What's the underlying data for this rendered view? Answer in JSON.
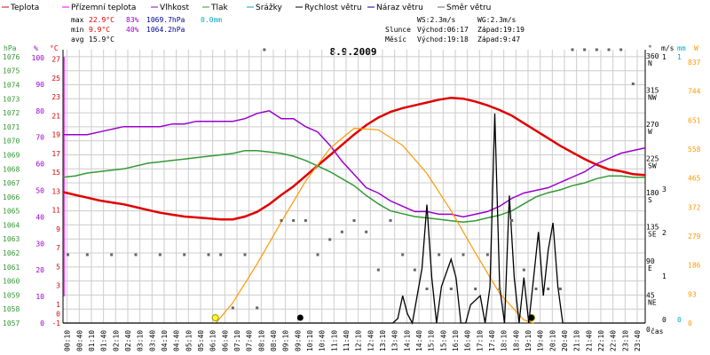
{
  "legend": [
    {
      "label": "Teplota",
      "color": "#e00000"
    },
    {
      "label": "Přízemní teplota",
      "color": "#ff00ff"
    },
    {
      "label": "Vlhkost",
      "color": "#9900cc"
    },
    {
      "label": "Tlak",
      "color": "#339933"
    },
    {
      "label": "Srážky",
      "color": "#00aacc"
    },
    {
      "label": "Rychlost větru",
      "color": "#000000"
    },
    {
      "label": "Náraz větru",
      "color": "#000099"
    },
    {
      "label": "Směr větru",
      "color": "#666666"
    }
  ],
  "stats": {
    "max_label": "max",
    "max_temp": "22.9°C",
    "max_hum": "83%",
    "max_press": "1069.7hPa",
    "max_rain": "0.0mm",
    "min_label": "min",
    "min_temp": "9.9°C",
    "min_hum": "40%",
    "min_press": "1064.2hPa",
    "avg_label": "avg",
    "avg_temp": "15.9°C"
  },
  "wind_info": {
    "ws": "WS:2.3m/s",
    "wg": "WG:2.3m/s"
  },
  "sun_info": {
    "label": "Slunce",
    "rise": "Východ:06:17",
    "set": "Západ:19:19"
  },
  "moon_info": {
    "label": "Měsíc",
    "rise": "Východ:19:18",
    "set": "Západ:9:47"
  },
  "date": "8.9.2009",
  "colors": {
    "temp": "#e00000",
    "ground_temp": "#ff00ff",
    "humidity": "#9900cc",
    "pressure": "#339933",
    "rain": "#00aacc",
    "wind_speed": "#000000",
    "gust": "#000099",
    "wind_dir": "#666666",
    "solar": "#ff9900",
    "hpa_axis": "#339933",
    "pct_axis": "#9900cc",
    "temp_axis": "#e00000",
    "rain_axis": "#00aacc",
    "solar_axis": "#ff9900",
    "grid": "#cccccc"
  },
  "axes": {
    "hpa_label": "hPa",
    "pct_label": "%",
    "temp_label": "°C",
    "dir_label": "°",
    "ms_label": "m/s",
    "mm_label": "mm",
    "w_label": "W",
    "hpa_ticks": [
      "1076",
      "1075",
      "1074",
      "1073",
      "1072",
      "1071",
      "1070",
      "1069",
      "1068",
      "1067",
      "1066",
      "1065",
      "1064",
      "1063",
      "1062",
      "1061",
      "1060",
      "1059",
      "1058",
      "1057"
    ],
    "pct_ticks": [
      "100",
      "90",
      "80",
      "70",
      "60",
      "50",
      "40",
      "30",
      "20",
      "10",
      "0"
    ],
    "temp_ticks": [
      "27",
      "25",
      "23",
      "21",
      "19",
      "17",
      "15",
      "13",
      "11",
      "9",
      "7",
      "5",
      "3",
      "1",
      "0",
      "-1"
    ],
    "dir_ticks": [
      "360 N",
      "315 NW",
      "270 W",
      "225 SW",
      "180 S",
      "135 SE",
      "90 E",
      "45 NE",
      "0"
    ],
    "ms_ticks": [
      "1",
      "3",
      "2",
      "1",
      "0"
    ],
    "mm_ticks": [
      "0",
      "1"
    ],
    "solar_ticks": [
      "837",
      "744",
      "651",
      "558",
      "465",
      "372",
      "279",
      "186",
      "93",
      "0"
    ],
    "x_label": "čas",
    "x_ticks": [
      "00:10",
      "00:40",
      "01:10",
      "01:40",
      "02:10",
      "02:40",
      "03:10",
      "03:40",
      "04:10",
      "04:40",
      "05:10",
      "05:40",
      "06:10",
      "06:40",
      "07:10",
      "07:40",
      "08:10",
      "08:40",
      "09:10",
      "09:40",
      "10:10",
      "10:40",
      "11:10",
      "11:40",
      "12:10",
      "12:40",
      "13:10",
      "13:40",
      "14:10",
      "14:40",
      "15:10",
      "15:40",
      "16:10",
      "16:40",
      "17:10",
      "17:40",
      "18:10",
      "18:40",
      "19:10",
      "19:40",
      "20:10",
      "20:40",
      "21:10",
      "21:40",
      "22:10",
      "22:40",
      "23:10",
      "23:40"
    ]
  },
  "chart_data": {
    "type": "line",
    "title": "8.9.2009",
    "x_unit": "hours",
    "xlim": [
      0,
      24
    ],
    "temp_ylim": [
      -1,
      28
    ],
    "hum_ylim": [
      0,
      100
    ],
    "press_ylim": [
      1057,
      1076.5
    ],
    "solar_ylim": [
      0,
      837
    ],
    "dir_ylim": [
      0,
      360
    ],
    "series": [
      {
        "name": "Teplota",
        "unit": "°C",
        "x": [
          0,
          0.5,
          1,
          1.5,
          2,
          2.5,
          3,
          3.5,
          4,
          4.5,
          5,
          5.5,
          6,
          6.5,
          7,
          7.5,
          8,
          8.5,
          9,
          9.5,
          10,
          10.5,
          11,
          11.5,
          12,
          12.5,
          13,
          13.5,
          14,
          14.5,
          15,
          15.5,
          16,
          16.5,
          17,
          17.5,
          18,
          18.5,
          19,
          19.5,
          20,
          20.5,
          21,
          21.5,
          22,
          22.5,
          23,
          23.5,
          24
        ],
        "y": [
          12.9,
          12.6,
          12.3,
          12.0,
          11.8,
          11.6,
          11.3,
          11.0,
          10.7,
          10.5,
          10.3,
          10.2,
          10.1,
          10.0,
          10.0,
          10.3,
          10.8,
          11.6,
          12.6,
          13.5,
          14.6,
          15.7,
          16.8,
          17.9,
          19.0,
          20.0,
          20.8,
          21.4,
          21.8,
          22.1,
          22.4,
          22.7,
          22.9,
          22.8,
          22.5,
          22.1,
          21.6,
          21.0,
          20.2,
          19.4,
          18.6,
          17.8,
          17.1,
          16.4,
          15.8,
          15.3,
          15.1,
          14.8,
          14.7
        ]
      },
      {
        "name": "Vlhkost",
        "unit": "%",
        "x": [
          0,
          0.5,
          1,
          1.5,
          2,
          2.5,
          3,
          3.5,
          4,
          4.5,
          5,
          5.5,
          6,
          6.5,
          7,
          7.5,
          8,
          8.5,
          9,
          9.5,
          10,
          10.5,
          11,
          11.5,
          12,
          12.5,
          13,
          13.5,
          14,
          14.5,
          15,
          15.5,
          16,
          16.5,
          17,
          17.5,
          18,
          18.5,
          19,
          19.5,
          20,
          20.5,
          21,
          21.5,
          22,
          22.5,
          23,
          23.5,
          24
        ],
        "y": [
          71,
          71,
          71,
          72,
          73,
          74,
          74,
          74,
          74,
          75,
          75,
          76,
          76,
          76,
          76,
          77,
          79,
          80,
          77,
          77,
          74,
          72,
          67,
          61,
          56,
          51,
          49,
          46,
          44,
          42,
          42,
          41,
          41,
          40,
          41,
          42,
          44,
          47,
          49,
          50,
          51,
          53,
          55,
          57,
          60,
          62,
          64,
          65,
          66
        ]
      },
      {
        "name": "Tlak",
        "unit": "hPa",
        "x": [
          0,
          0.5,
          1,
          1.5,
          2,
          2.5,
          3,
          3.5,
          4,
          4.5,
          5,
          5.5,
          6,
          6.5,
          7,
          7.5,
          8,
          8.5,
          9,
          9.5,
          10,
          10.5,
          11,
          11.5,
          12,
          12.5,
          13,
          13.5,
          14,
          14.5,
          15,
          15.5,
          16,
          16.5,
          17,
          17.5,
          18,
          18.5,
          19,
          19.5,
          20,
          20.5,
          21,
          21.5,
          22,
          22.5,
          23,
          23.5,
          24
        ],
        "y": [
          1067.4,
          1067.5,
          1067.7,
          1067.8,
          1067.9,
          1068.0,
          1068.2,
          1068.4,
          1068.5,
          1068.6,
          1068.7,
          1068.8,
          1068.9,
          1069.0,
          1069.1,
          1069.3,
          1069.3,
          1069.2,
          1069.1,
          1068.9,
          1068.6,
          1068.2,
          1067.8,
          1067.3,
          1066.8,
          1066.1,
          1065.5,
          1065.0,
          1064.8,
          1064.6,
          1064.5,
          1064.4,
          1064.3,
          1064.2,
          1064.3,
          1064.5,
          1064.7,
          1065.0,
          1065.5,
          1066.0,
          1066.3,
          1066.5,
          1066.8,
          1067.0,
          1067.3,
          1067.5,
          1067.5,
          1067.4,
          1067.4
        ]
      },
      {
        "name": "Solar",
        "unit": "W",
        "x": [
          6.3,
          7,
          8,
          9,
          10,
          11,
          12,
          13,
          14,
          15,
          16,
          17,
          18,
          19,
          19.4
        ],
        "y": [
          0,
          65,
          190,
          325,
          455,
          560,
          625,
          620,
          570,
          480,
          360,
          225,
          95,
          10,
          0
        ]
      },
      {
        "name": "Rychlost větru",
        "unit": "m/s",
        "x": [
          0,
          13.6,
          13.8,
          14.0,
          14.2,
          14.4,
          14.8,
          15.0,
          15.2,
          15.4,
          15.6,
          16.0,
          16.2,
          16.4,
          16.6,
          16.8,
          17.2,
          17.4,
          17.6,
          17.8,
          18.0,
          18.2,
          18.4,
          18.6,
          18.8,
          19.0,
          19.2,
          19.4,
          19.6,
          19.8,
          20.0,
          20.2,
          20.4,
          20.6,
          24
        ],
        "y": [
          0,
          0,
          0.05,
          0.3,
          0.1,
          0,
          0.6,
          1.3,
          0.5,
          0,
          0.4,
          0.7,
          0.5,
          0,
          0,
          0.2,
          0.3,
          0,
          0.4,
          2.3,
          0.4,
          0,
          1.4,
          0.5,
          0,
          0.5,
          0,
          0.5,
          1.0,
          0.3,
          0.8,
          1.1,
          0.4,
          0,
          0
        ]
      },
      {
        "name": "Směr větru",
        "unit": "°",
        "x": [
          0.2,
          1,
          2,
          3,
          4,
          5,
          6,
          6.5,
          7,
          7.5,
          8,
          8.3,
          9,
          9.5,
          10,
          10.5,
          11,
          11.5,
          12,
          12.5,
          13,
          13.5,
          14,
          14.5,
          15,
          15.5,
          16,
          16.5,
          17,
          17.5,
          18,
          18.5,
          19,
          19.5,
          20,
          20.5,
          21,
          21.5,
          22,
          22.5,
          23,
          23.5
        ],
        "y": [
          90,
          90,
          90,
          90,
          90,
          90,
          90,
          90,
          20,
          90,
          20,
          360,
          135,
          135,
          135,
          90,
          110,
          120,
          135,
          120,
          70,
          135,
          90,
          70,
          45,
          90,
          45,
          90,
          45,
          90,
          45,
          135,
          70,
          45,
          45,
          45,
          360,
          360,
          360,
          360,
          360,
          315
        ]
      }
    ]
  }
}
